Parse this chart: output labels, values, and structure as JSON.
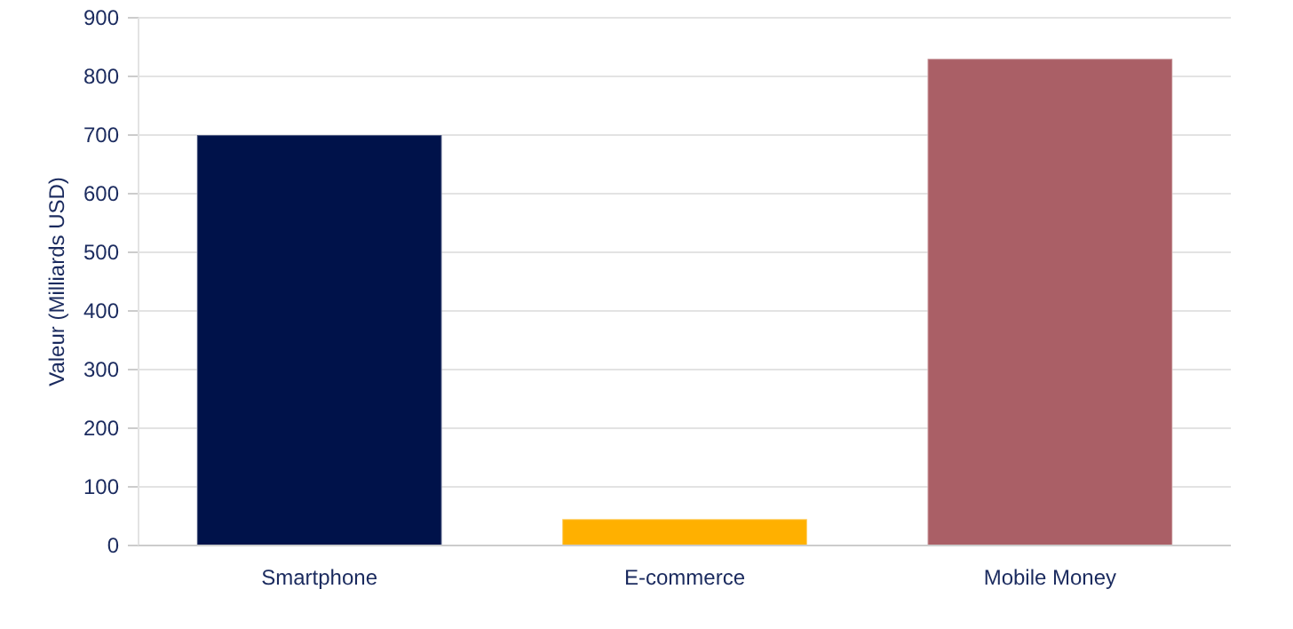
{
  "chart_data": {
    "type": "bar",
    "ylabel": "Valeur (Milliards USD)",
    "categories": [
      "Smartphone",
      "E-commerce",
      "Mobile Money"
    ],
    "values": [
      700,
      45,
      830
    ],
    "colors": [
      "#00124a",
      "#ffb000",
      "#aa5f66"
    ],
    "ylim": [
      0,
      900
    ],
    "yticks": [
      0,
      100,
      200,
      300,
      400,
      500,
      600,
      700,
      800,
      900
    ],
    "grid": "y"
  }
}
